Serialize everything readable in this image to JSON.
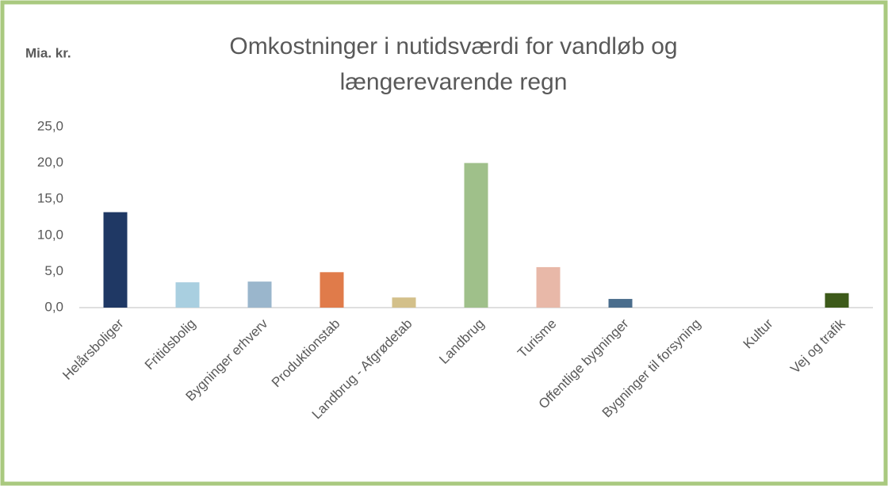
{
  "chart_data": {
    "type": "bar",
    "title": [
      "Omkostninger i nutidsværdi for vandløb og",
      "længerevarende regn"
    ],
    "y_label": "Mia. kr.",
    "categories": [
      "Helårsboliger",
      "Fritidsbolig",
      "Bygninger erhverv",
      "Produktionstab",
      "Landbrug - Afgrødetab",
      "Landbrug",
      "Turisme",
      "Offentlige bygninger",
      "Bygninger til forsyning",
      "Kultur",
      "Vej og trafik"
    ],
    "values": [
      13.2,
      3.5,
      3.6,
      4.9,
      1.4,
      20.0,
      5.6,
      1.2,
      0,
      0,
      2.0
    ],
    "colors": [
      "#1f3864",
      "#a9cfe0",
      "#9ab6cc",
      "#e07b4a",
      "#d3c08a",
      "#9fc08a",
      "#e8b8a8",
      "#4a6d8c",
      "#7f7f7f",
      "#7f7f7f",
      "#3d5a1a"
    ],
    "ylim": [
      0,
      25
    ],
    "yticks": [
      {
        "value": 0,
        "label": "0,0"
      },
      {
        "value": 5,
        "label": "5,0"
      },
      {
        "value": 10,
        "label": "10,0"
      },
      {
        "value": 15,
        "label": "15,0"
      },
      {
        "value": 20,
        "label": "20,0"
      },
      {
        "value": 25,
        "label": "25,0"
      }
    ],
    "grid": false
  }
}
